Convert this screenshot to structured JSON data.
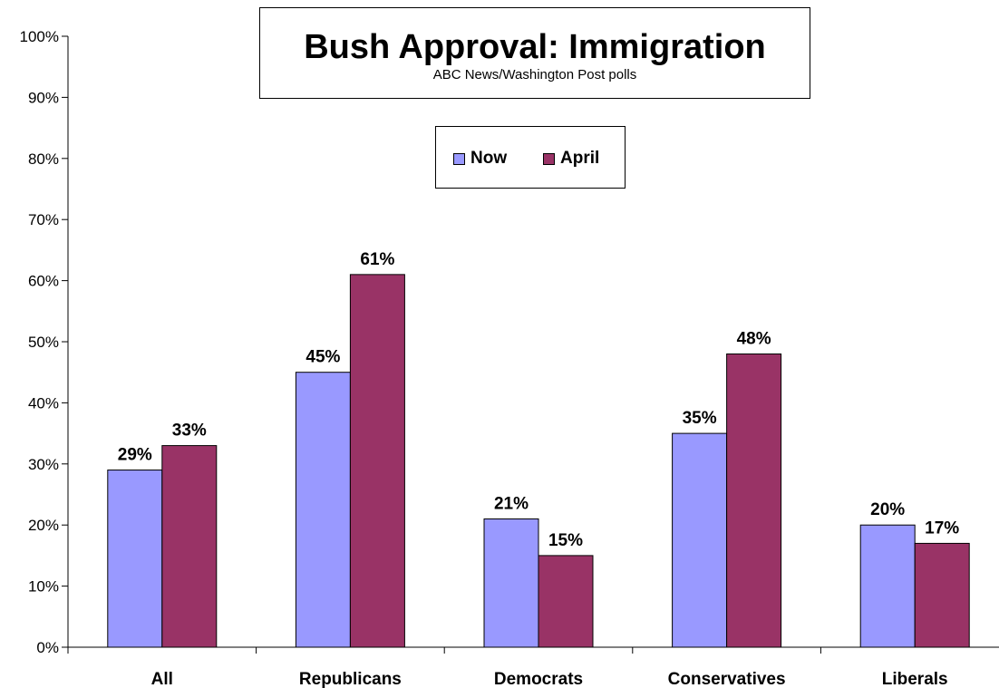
{
  "chart_data": {
    "type": "bar",
    "title": "Bush Approval: Immigration",
    "subtitle": "ABC News/Washington Post polls",
    "categories": [
      "All",
      "Republicans",
      "Democrats",
      "Conservatives",
      "Liberals"
    ],
    "series": [
      {
        "name": "Now",
        "color": "#9999FF",
        "values": [
          29,
          45,
          21,
          35,
          20
        ],
        "labels": [
          "29%",
          "45%",
          "21%",
          "35%",
          "20%"
        ]
      },
      {
        "name": "April",
        "color": "#993366",
        "values": [
          33,
          61,
          15,
          48,
          17
        ],
        "labels": [
          "33%",
          "61%",
          "15%",
          "48%",
          "17%"
        ]
      }
    ],
    "ylim": [
      0,
      100
    ],
    "yticks": [
      "0%",
      "10%",
      "20%",
      "30%",
      "40%",
      "50%",
      "60%",
      "70%",
      "80%",
      "90%",
      "100%"
    ],
    "xlabel": "",
    "ylabel": "",
    "grid": false,
    "legend_position": "top-center"
  }
}
